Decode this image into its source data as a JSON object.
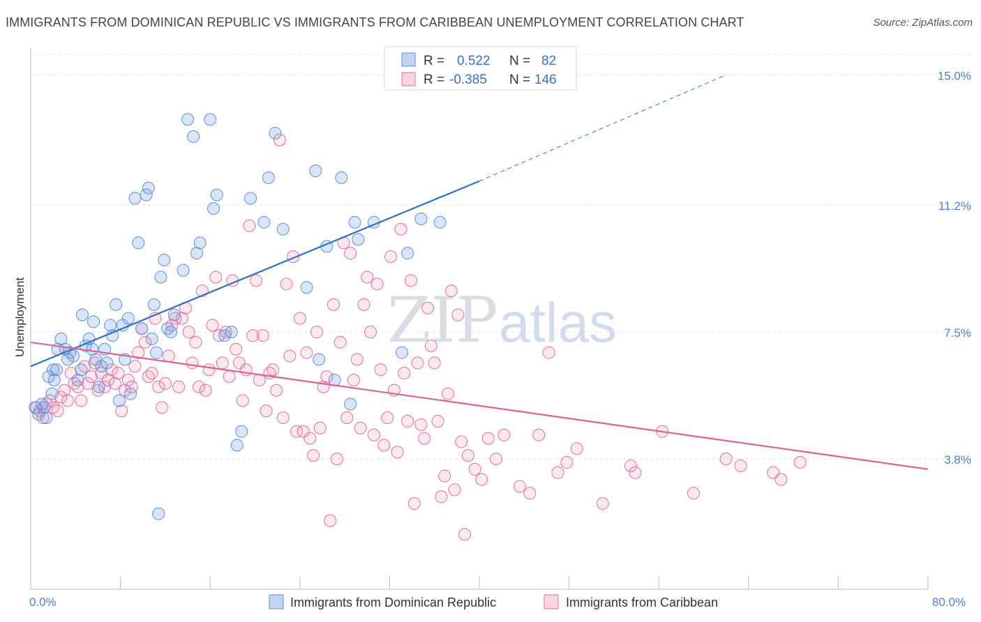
{
  "title": "IMMIGRANTS FROM DOMINICAN REPUBLIC VS IMMIGRANTS FROM CARIBBEAN UNEMPLOYMENT CORRELATION CHART",
  "source": "Source: ZipAtlas.com",
  "watermark": {
    "zip": "ZIP",
    "atlas": "atlas"
  },
  "colors": {
    "blue": "#5b8fd9",
    "blue_fill": "rgba(120,160,225,0.28)",
    "pink": "#e36b98",
    "pink_fill": "rgba(240,150,180,0.22)",
    "blue_line": "#2a6fcf",
    "pink_line": "#e0608f"
  },
  "legend": {
    "r_label": "R =",
    "n_label": "N =",
    "rows": [
      {
        "r": "0.522",
        "n": "82",
        "color": "blue"
      },
      {
        "r": "-0.385",
        "n": "146",
        "color": "pink"
      }
    ]
  },
  "chart_data": {
    "type": "scatter",
    "ylabel": "Unemployment",
    "xlim": [
      0,
      80
    ],
    "ylim": [
      0,
      15.8
    ],
    "x_tick_labels": [
      "0.0%",
      "80.0%"
    ],
    "y_ticks": [
      {
        "value": 3.8,
        "label": "3.8%"
      },
      {
        "value": 7.5,
        "label": "7.5%"
      },
      {
        "value": 11.2,
        "label": "11.2%"
      },
      {
        "value": 15.0,
        "label": "15.0%"
      }
    ],
    "grid": "horizontal-dashed",
    "series": [
      {
        "name": "Immigrants from Dominican Republic",
        "color": "blue",
        "trend": {
          "x0": 0,
          "y0": 6.5,
          "x1": 40,
          "y1": 11.9,
          "dash_to": {
            "x": 62,
            "y": 15.0
          }
        },
        "points": [
          [
            0.4,
            5.3
          ],
          [
            0.7,
            5.1
          ],
          [
            1.2,
            5.3
          ],
          [
            1.6,
            6.2
          ],
          [
            1.9,
            5.7
          ],
          [
            2.0,
            6.4
          ],
          [
            2.3,
            6.4
          ],
          [
            2.4,
            7.0
          ],
          [
            2.7,
            7.3
          ],
          [
            3.1,
            7.0
          ],
          [
            3.5,
            6.9
          ],
          [
            3.8,
            6.8
          ],
          [
            4.2,
            6.1
          ],
          [
            4.5,
            6.4
          ],
          [
            4.6,
            8.0
          ],
          [
            4.9,
            7.1
          ],
          [
            5.2,
            7.3
          ],
          [
            5.5,
            7.0
          ],
          [
            5.6,
            7.8
          ],
          [
            5.8,
            6.7
          ],
          [
            6.1,
            5.9
          ],
          [
            6.3,
            6.5
          ],
          [
            6.6,
            7.0
          ],
          [
            6.8,
            6.6
          ],
          [
            7.1,
            7.7
          ],
          [
            7.3,
            7.4
          ],
          [
            7.6,
            8.3
          ],
          [
            7.9,
            5.5
          ],
          [
            8.2,
            7.7
          ],
          [
            8.4,
            6.7
          ],
          [
            8.7,
            7.9
          ],
          [
            8.9,
            5.7
          ],
          [
            9.3,
            11.4
          ],
          [
            9.6,
            10.1
          ],
          [
            9.9,
            7.6
          ],
          [
            10.3,
            11.5
          ],
          [
            10.5,
            11.7
          ],
          [
            10.8,
            7.3
          ],
          [
            11.0,
            8.3
          ],
          [
            11.2,
            6.9
          ],
          [
            11.4,
            2.2
          ],
          [
            11.6,
            9.1
          ],
          [
            11.9,
            9.6
          ],
          [
            12.2,
            7.6
          ],
          [
            12.5,
            7.5
          ],
          [
            12.8,
            8.0
          ],
          [
            13.6,
            9.3
          ],
          [
            14.0,
            13.7
          ],
          [
            14.5,
            13.2
          ],
          [
            14.8,
            9.8
          ],
          [
            15.1,
            10.1
          ],
          [
            16.0,
            13.7
          ],
          [
            16.3,
            11.1
          ],
          [
            16.6,
            11.5
          ],
          [
            17.3,
            7.4
          ],
          [
            17.9,
            7.5
          ],
          [
            18.4,
            4.2
          ],
          [
            18.8,
            4.6
          ],
          [
            19.6,
            11.4
          ],
          [
            20.8,
            10.7
          ],
          [
            21.2,
            12.0
          ],
          [
            21.8,
            13.3
          ],
          [
            22.5,
            10.5
          ],
          [
            24.6,
            8.8
          ],
          [
            25.4,
            12.2
          ],
          [
            25.7,
            6.7
          ],
          [
            26.4,
            10.0
          ],
          [
            27.1,
            6.1
          ],
          [
            27.7,
            12.0
          ],
          [
            28.5,
            5.4
          ],
          [
            28.9,
            10.7
          ],
          [
            29.2,
            10.2
          ],
          [
            30.6,
            10.7
          ],
          [
            32.2,
            15.0
          ],
          [
            33.1,
            6.9
          ],
          [
            33.6,
            9.8
          ],
          [
            34.8,
            10.8
          ],
          [
            36.5,
            10.7
          ],
          [
            1.0,
            5.4
          ],
          [
            1.4,
            5.0
          ],
          [
            2.1,
            6.1
          ],
          [
            3.3,
            6.7
          ]
        ]
      },
      {
        "name": "Immigrants from Caribbean",
        "color": "pink",
        "trend": {
          "x0": 0,
          "y0": 7.2,
          "x1": 80,
          "y1": 3.5
        },
        "points": [
          [
            0.5,
            5.3
          ],
          [
            0.8,
            5.2
          ],
          [
            1.1,
            5.0
          ],
          [
            1.4,
            5.4
          ],
          [
            1.7,
            5.5
          ],
          [
            2.0,
            5.3
          ],
          [
            2.4,
            5.2
          ],
          [
            2.7,
            5.6
          ],
          [
            3.0,
            5.8
          ],
          [
            3.3,
            5.5
          ],
          [
            3.6,
            6.3
          ],
          [
            3.9,
            6.0
          ],
          [
            4.2,
            5.9
          ],
          [
            4.5,
            5.5
          ],
          [
            4.8,
            6.5
          ],
          [
            5.1,
            6.0
          ],
          [
            5.4,
            6.2
          ],
          [
            5.7,
            6.6
          ],
          [
            6.0,
            5.8
          ],
          [
            6.3,
            6.3
          ],
          [
            6.6,
            5.9
          ],
          [
            6.9,
            6.1
          ],
          [
            7.2,
            6.4
          ],
          [
            7.5,
            6.0
          ],
          [
            7.8,
            6.3
          ],
          [
            8.1,
            5.2
          ],
          [
            8.4,
            5.8
          ],
          [
            8.7,
            6.1
          ],
          [
            9.0,
            5.9
          ],
          [
            9.3,
            6.5
          ],
          [
            9.6,
            6.9
          ],
          [
            9.9,
            7.6
          ],
          [
            10.2,
            7.2
          ],
          [
            10.5,
            6.2
          ],
          [
            10.8,
            6.3
          ],
          [
            11.1,
            7.9
          ],
          [
            11.4,
            5.9
          ],
          [
            11.7,
            5.3
          ],
          [
            12.0,
            6.0
          ],
          [
            12.3,
            6.8
          ],
          [
            12.6,
            7.7
          ],
          [
            12.9,
            7.9
          ],
          [
            13.2,
            5.9
          ],
          [
            13.5,
            7.9
          ],
          [
            13.8,
            8.2
          ],
          [
            14.1,
            7.5
          ],
          [
            14.4,
            6.6
          ],
          [
            14.7,
            7.2
          ],
          [
            15.0,
            5.9
          ],
          [
            15.3,
            8.7
          ],
          [
            15.6,
            5.8
          ],
          [
            15.9,
            6.4
          ],
          [
            16.2,
            7.7
          ],
          [
            16.5,
            9.1
          ],
          [
            16.8,
            7.4
          ],
          [
            17.1,
            6.6
          ],
          [
            17.4,
            7.5
          ],
          [
            17.7,
            6.2
          ],
          [
            18.0,
            9.0
          ],
          [
            18.3,
            7.0
          ],
          [
            18.6,
            6.6
          ],
          [
            18.9,
            5.5
          ],
          [
            19.2,
            6.4
          ],
          [
            19.5,
            10.6
          ],
          [
            19.8,
            7.4
          ],
          [
            20.1,
            9.0
          ],
          [
            20.4,
            6.1
          ],
          [
            20.7,
            7.4
          ],
          [
            21.0,
            5.2
          ],
          [
            21.3,
            6.3
          ],
          [
            21.6,
            6.4
          ],
          [
            21.9,
            5.8
          ],
          [
            22.2,
            13.1
          ],
          [
            22.5,
            5.0
          ],
          [
            22.8,
            8.9
          ],
          [
            23.1,
            6.8
          ],
          [
            23.4,
            9.7
          ],
          [
            23.7,
            4.6
          ],
          [
            24.0,
            7.9
          ],
          [
            24.3,
            4.6
          ],
          [
            24.6,
            6.9
          ],
          [
            24.9,
            4.4
          ],
          [
            25.2,
            3.9
          ],
          [
            25.5,
            7.5
          ],
          [
            25.8,
            4.7
          ],
          [
            26.1,
            5.9
          ],
          [
            26.4,
            6.2
          ],
          [
            26.7,
            2.0
          ],
          [
            27.0,
            8.3
          ],
          [
            27.3,
            3.8
          ],
          [
            27.6,
            7.2
          ],
          [
            27.9,
            10.1
          ],
          [
            28.2,
            5.0
          ],
          [
            28.5,
            9.8
          ],
          [
            28.8,
            6.1
          ],
          [
            29.1,
            6.7
          ],
          [
            29.4,
            4.7
          ],
          [
            29.7,
            8.3
          ],
          [
            30.0,
            9.1
          ],
          [
            30.3,
            7.5
          ],
          [
            30.6,
            4.5
          ],
          [
            30.9,
            8.9
          ],
          [
            31.2,
            6.4
          ],
          [
            31.5,
            4.2
          ],
          [
            31.8,
            5.0
          ],
          [
            32.1,
            9.7
          ],
          [
            32.4,
            5.8
          ],
          [
            32.7,
            4.0
          ],
          [
            33.0,
            10.5
          ],
          [
            33.3,
            6.3
          ],
          [
            33.6,
            4.9
          ],
          [
            33.9,
            9.0
          ],
          [
            34.2,
            2.5
          ],
          [
            34.5,
            6.6
          ],
          [
            34.8,
            4.8
          ],
          [
            35.1,
            4.4
          ],
          [
            35.4,
            8.2
          ],
          [
            35.7,
            7.1
          ],
          [
            36.0,
            6.6
          ],
          [
            36.3,
            4.9
          ],
          [
            36.6,
            2.7
          ],
          [
            36.9,
            3.3
          ],
          [
            37.2,
            5.7
          ],
          [
            37.5,
            8.7
          ],
          [
            37.8,
            2.9
          ],
          [
            38.1,
            8.0
          ],
          [
            38.4,
            4.3
          ],
          [
            38.7,
            1.6
          ],
          [
            39.0,
            3.9
          ],
          [
            39.6,
            3.5
          ],
          [
            40.2,
            3.2
          ],
          [
            40.8,
            4.4
          ],
          [
            41.5,
            3.8
          ],
          [
            42.2,
            4.5
          ],
          [
            43.6,
            3.0
          ],
          [
            44.5,
            2.8
          ],
          [
            45.3,
            4.5
          ],
          [
            46.2,
            6.9
          ],
          [
            47.0,
            3.4
          ],
          [
            47.8,
            3.7
          ],
          [
            48.7,
            4.1
          ],
          [
            51.0,
            2.5
          ],
          [
            53.5,
            3.6
          ],
          [
            53.9,
            3.4
          ],
          [
            56.3,
            4.6
          ],
          [
            59.1,
            2.8
          ],
          [
            62.0,
            3.8
          ],
          [
            63.3,
            3.6
          ],
          [
            66.2,
            3.4
          ],
          [
            66.9,
            3.2
          ],
          [
            68.6,
            3.7
          ]
        ]
      }
    ]
  },
  "bottom_legend": [
    {
      "label": "Immigrants from Dominican Republic",
      "color": "blue"
    },
    {
      "label": "Immigrants from Caribbean",
      "color": "pink"
    }
  ]
}
